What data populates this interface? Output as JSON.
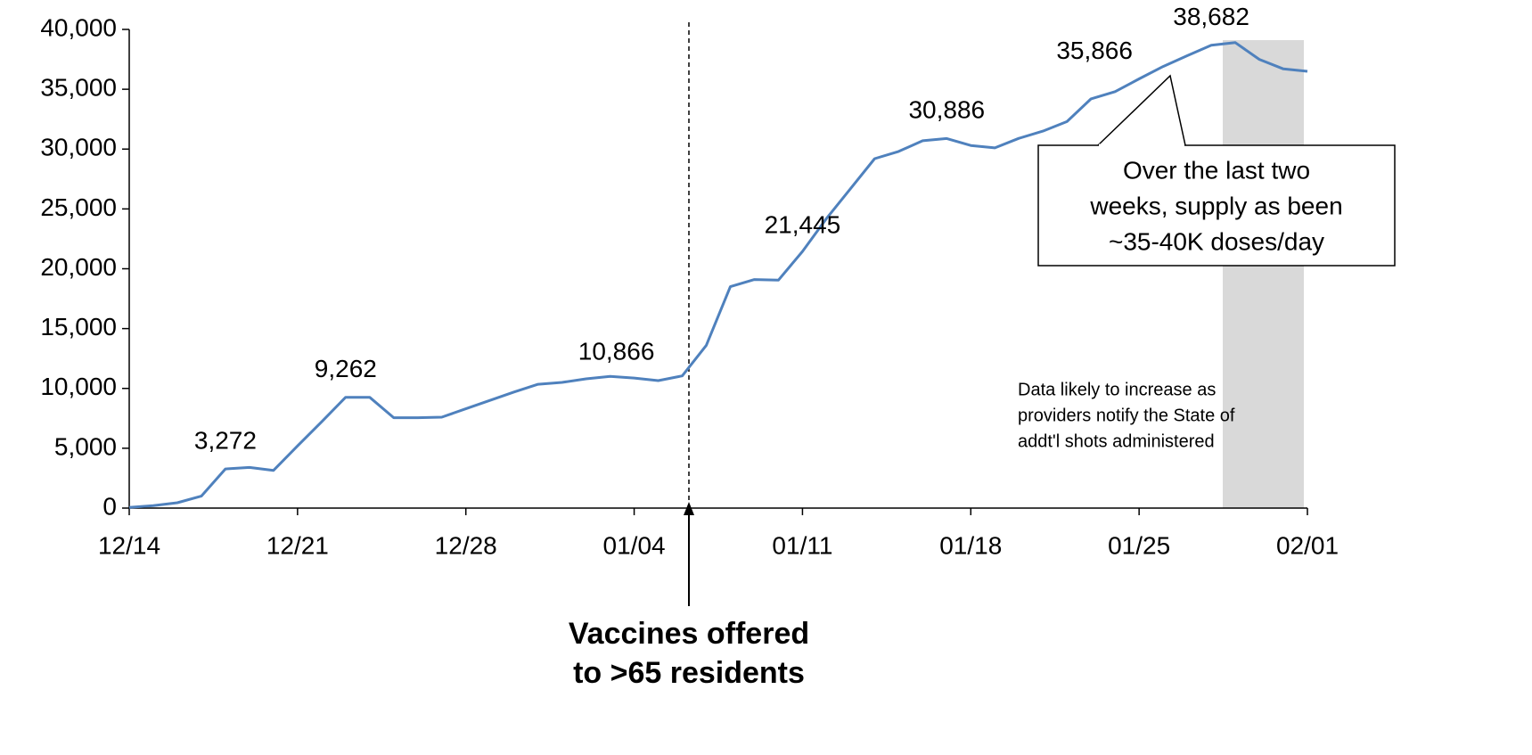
{
  "chart_data": {
    "type": "line",
    "categories": [
      "12/14",
      null,
      null,
      null,
      null,
      null,
      null,
      "12/21",
      null,
      null,
      null,
      null,
      null,
      null,
      "12/28",
      null,
      null,
      null,
      null,
      null,
      null,
      "01/04",
      null,
      null,
      null,
      null,
      null,
      null,
      "01/11",
      null,
      null,
      null,
      null,
      null,
      null,
      "01/18",
      null,
      null,
      null,
      null,
      null,
      null,
      "01/25",
      null,
      null,
      null,
      null,
      null,
      null,
      "02/01"
    ],
    "values": [
      50,
      200,
      450,
      1000,
      3272,
      3400,
      3150,
      5200,
      7200,
      9262,
      9262,
      7550,
      7550,
      7600,
      8300,
      9000,
      9700,
      10350,
      10500,
      10800,
      11000,
      10866,
      10650,
      11050,
      13600,
      18500,
      19100,
      19050,
      21445,
      24200,
      26700,
      29200,
      29800,
      30700,
      30886,
      30300,
      30100,
      30900,
      31500,
      32300,
      34200,
      34800,
      35866,
      36900,
      37800,
      38682,
      38900,
      37500,
      36700,
      36500
    ],
    "value_labels": [
      null,
      null,
      null,
      null,
      "3,272",
      null,
      null,
      null,
      null,
      "9,262",
      null,
      null,
      null,
      null,
      null,
      null,
      null,
      null,
      null,
      null,
      null,
      "10,866",
      null,
      null,
      null,
      null,
      null,
      null,
      "21,445",
      null,
      null,
      null,
      null,
      null,
      "30,886",
      null,
      null,
      null,
      null,
      null,
      null,
      null,
      "35,866",
      null,
      null,
      "38,682",
      null,
      null,
      null,
      null
    ],
    "color": "#4f81bd",
    "ylim": [
      0,
      40000
    ],
    "yticks": [
      0,
      {
        "value": 5000,
        "label": "5,000"
      },
      {
        "value": 10000,
        "label": "10,000"
      },
      {
        "value": 15000,
        "label": "15,000"
      },
      {
        "value": 20000,
        "label": "20,000"
      },
      {
        "value": 25000,
        "label": "25,000"
      },
      {
        "value": 30000,
        "label": "30,000"
      },
      {
        "value": 35000,
        "label": "35,000"
      },
      {
        "value": 40000,
        "label": "40,000"
      }
    ],
    "grid": false,
    "callout": [
      "Over the last two",
      "weeks, supply as been",
      "~35-40K doses/day"
    ],
    "note": [
      "Data likely to increase as",
      "providers notify the State of",
      "addt'l shots administered"
    ],
    "event_label": [
      "Vaccines offered",
      "to >65 residents"
    ]
  }
}
